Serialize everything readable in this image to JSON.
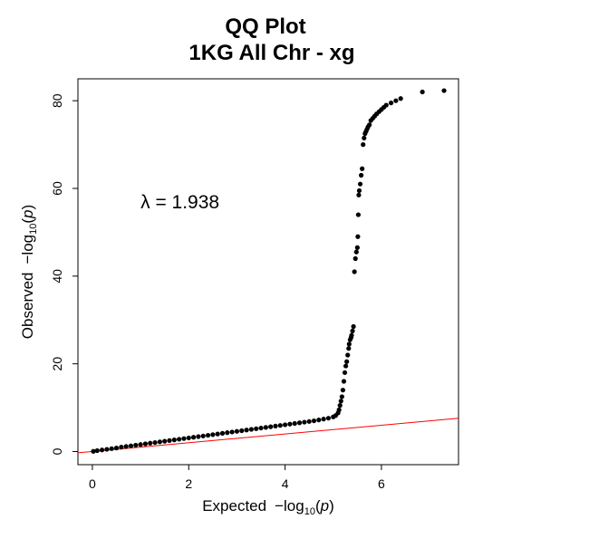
{
  "chart_data": {
    "type": "scatter",
    "title": [
      "QQ Plot",
      "1KG All Chr - xg"
    ],
    "xlabel": {
      "text": "Expected",
      "prefix": "−log",
      "sub": "10",
      "arg": "p"
    },
    "ylabel": {
      "text": "Observed",
      "prefix": "−log",
      "sub": "10",
      "arg": "p"
    },
    "xlim": [
      -0.3,
      7.6
    ],
    "ylim": [
      -3,
      85
    ],
    "x_ticks": [
      0,
      2,
      4,
      6
    ],
    "y_ticks": [
      0,
      20,
      40,
      60,
      80
    ],
    "x_tick_labels": [
      "0",
      "2",
      "4",
      "6"
    ],
    "y_tick_labels": [
      "0",
      "20",
      "40",
      "60",
      "80"
    ],
    "annotation": {
      "text": "λ = 1.938",
      "x": 1.0,
      "y": 55.5
    },
    "reference_line": {
      "slope": 1,
      "intercept": 0,
      "color": "#ff0000"
    },
    "point_color": "#000000",
    "grid": false,
    "points": {
      "x": [
        0.02,
        0.1,
        0.2,
        0.3,
        0.4,
        0.5,
        0.6,
        0.7,
        0.8,
        0.9,
        1.0,
        1.1,
        1.2,
        1.3,
        1.4,
        1.5,
        1.6,
        1.7,
        1.8,
        1.9,
        2.0,
        2.1,
        2.2,
        2.3,
        2.4,
        2.5,
        2.6,
        2.7,
        2.8,
        2.9,
        3.0,
        3.1,
        3.2,
        3.3,
        3.4,
        3.5,
        3.6,
        3.7,
        3.8,
        3.9,
        4.0,
        4.1,
        4.2,
        4.3,
        4.4,
        4.5,
        4.6,
        4.7,
        4.8,
        4.9,
        5.0,
        5.05,
        5.1,
        5.12,
        5.14,
        5.16,
        5.18,
        5.2,
        5.22,
        5.24,
        5.26,
        5.28,
        5.3,
        5.32,
        5.33,
        5.35,
        5.37,
        5.38,
        5.4,
        5.42,
        5.44,
        5.46,
        5.48,
        5.5,
        5.51,
        5.52,
        5.53,
        5.54,
        5.56,
        5.58,
        5.6,
        5.62,
        5.64,
        5.66,
        5.68,
        5.7,
        5.72,
        5.75,
        5.78,
        5.82,
        5.86,
        5.9,
        5.95,
        6.0,
        6.05,
        6.1,
        6.2,
        6.3,
        6.4,
        6.85,
        7.3
      ],
      "y": [
        0.05,
        0.2,
        0.35,
        0.5,
        0.65,
        0.8,
        1.0,
        1.15,
        1.3,
        1.45,
        1.6,
        1.75,
        1.9,
        2.05,
        2.2,
        2.35,
        2.5,
        2.65,
        2.8,
        2.95,
        3.1,
        3.25,
        3.4,
        3.55,
        3.7,
        3.85,
        4.0,
        4.15,
        4.3,
        4.45,
        4.6,
        4.75,
        4.9,
        5.05,
        5.2,
        5.35,
        5.5,
        5.65,
        5.8,
        5.95,
        6.1,
        6.25,
        6.4,
        6.55,
        6.7,
        6.85,
        7.0,
        7.2,
        7.4,
        7.6,
        7.9,
        8.2,
        8.8,
        9.5,
        10.5,
        11.5,
        12.5,
        14.0,
        16.0,
        18.0,
        19.5,
        20.5,
        22.0,
        23.5,
        24.5,
        25.5,
        26.0,
        26.5,
        27.5,
        28.5,
        41.0,
        44.0,
        45.5,
        46.5,
        49.0,
        54.0,
        58.5,
        59.5,
        61.0,
        63.0,
        64.5,
        70.0,
        71.5,
        72.5,
        73.0,
        73.5,
        74.0,
        74.5,
        75.5,
        76.0,
        76.5,
        77.0,
        77.5,
        78.0,
        78.5,
        79.0,
        79.5,
        80.0,
        80.5,
        82.0,
        82.3
      ]
    }
  }
}
